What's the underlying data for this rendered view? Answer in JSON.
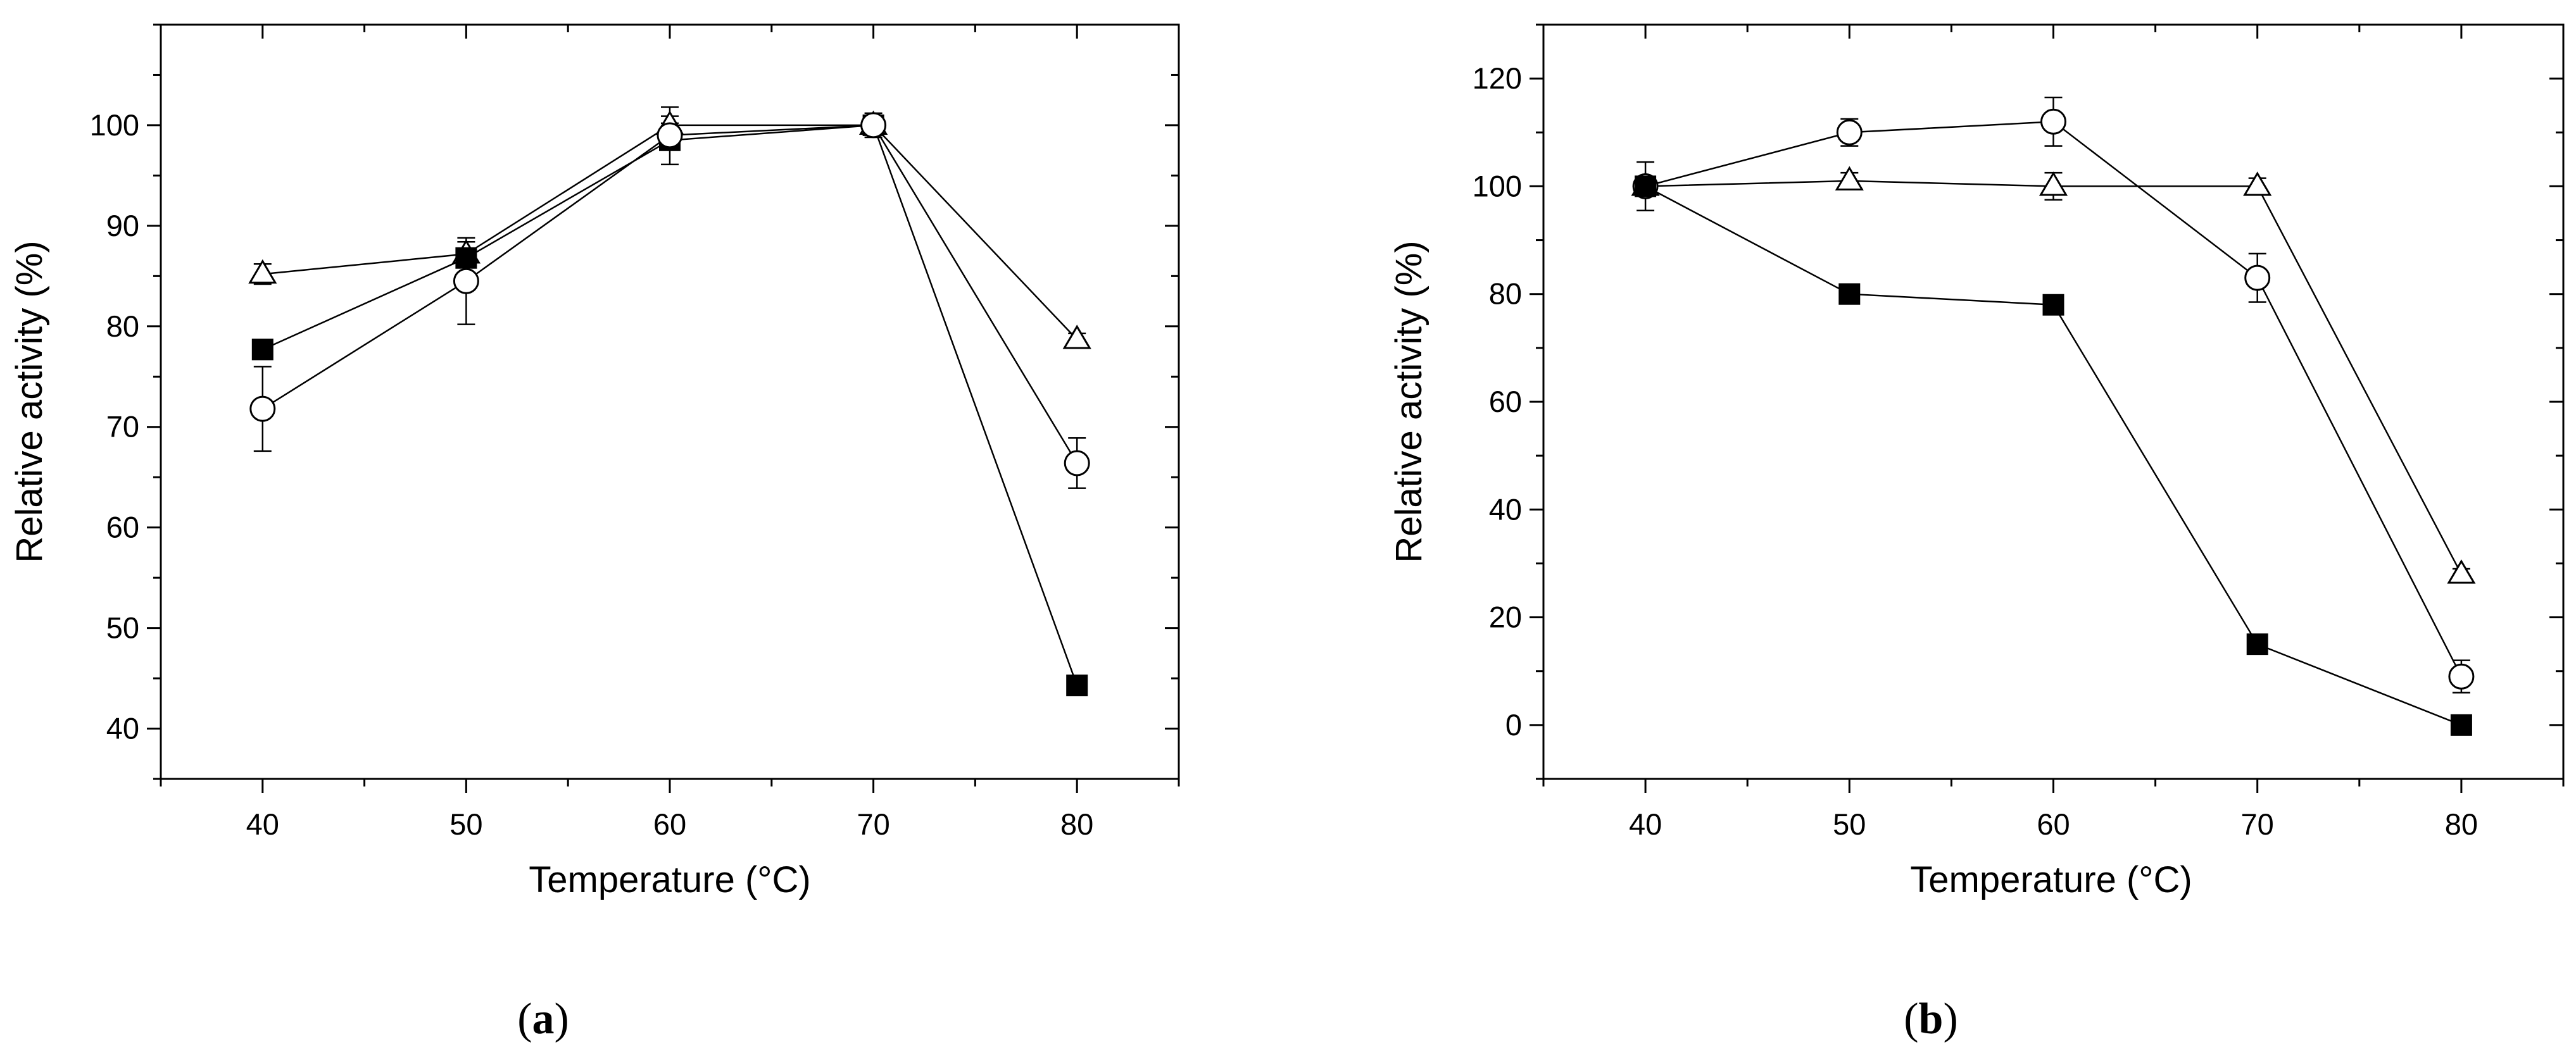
{
  "chart_data": [
    {
      "type": "line",
      "panel_label": "a",
      "xlabel": "Temperature (°C)",
      "ylabel": "Relative activity (%)",
      "xlim": [
        35,
        85
      ],
      "ylim": [
        35,
        110
      ],
      "xticks": [
        40,
        50,
        60,
        70,
        80
      ],
      "yticks": [
        40,
        50,
        60,
        70,
        80,
        90,
        100
      ],
      "x": [
        40,
        50,
        60,
        70,
        80
      ],
      "series": [
        {
          "name": "open triangle",
          "marker": "triangle-open",
          "values": [
            85.2,
            87.2,
            100.0,
            100.0,
            78.7
          ],
          "errors": [
            1.0,
            1.2,
            1.8,
            0.8,
            0.6
          ]
        },
        {
          "name": "filled square",
          "marker": "square-filled",
          "values": [
            77.7,
            86.8,
            98.5,
            100.0,
            44.3
          ],
          "errors": [
            0.6,
            0.8,
            2.4,
            0.8,
            0.5
          ]
        },
        {
          "name": "open circle",
          "marker": "circle-open",
          "values": [
            71.8,
            84.5,
            99.0,
            100.0,
            66.4
          ],
          "errors": [
            4.2,
            4.3,
            1.2,
            1.2,
            2.5
          ]
        }
      ]
    },
    {
      "type": "line",
      "panel_label": "b",
      "xlabel": "Temperature (°C)",
      "ylabel": "Relative activity (%)",
      "xlim": [
        35,
        85
      ],
      "ylim": [
        -10,
        130
      ],
      "xticks": [
        40,
        50,
        60,
        70,
        80
      ],
      "yticks": [
        0,
        20,
        40,
        60,
        80,
        100,
        120
      ],
      "x": [
        40,
        50,
        60,
        70,
        80
      ],
      "series": [
        {
          "name": "open triangle",
          "marker": "triangle-open",
          "values": [
            100.0,
            101.0,
            100.0,
            100.0,
            28.0
          ],
          "errors": [
            1.0,
            1.5,
            2.5,
            1.5,
            1.0
          ]
        },
        {
          "name": "open circle",
          "marker": "circle-open",
          "values": [
            100.0,
            110.0,
            112.0,
            83.0,
            9.0
          ],
          "errors": [
            1.5,
            2.5,
            4.5,
            4.5,
            3.0
          ]
        },
        {
          "name": "filled square",
          "marker": "square-filled",
          "values": [
            100.0,
            80.0,
            78.0,
            15.0,
            0.0
          ],
          "errors": [
            4.5,
            0.8,
            0.8,
            0.5,
            0.5
          ]
        }
      ]
    }
  ]
}
